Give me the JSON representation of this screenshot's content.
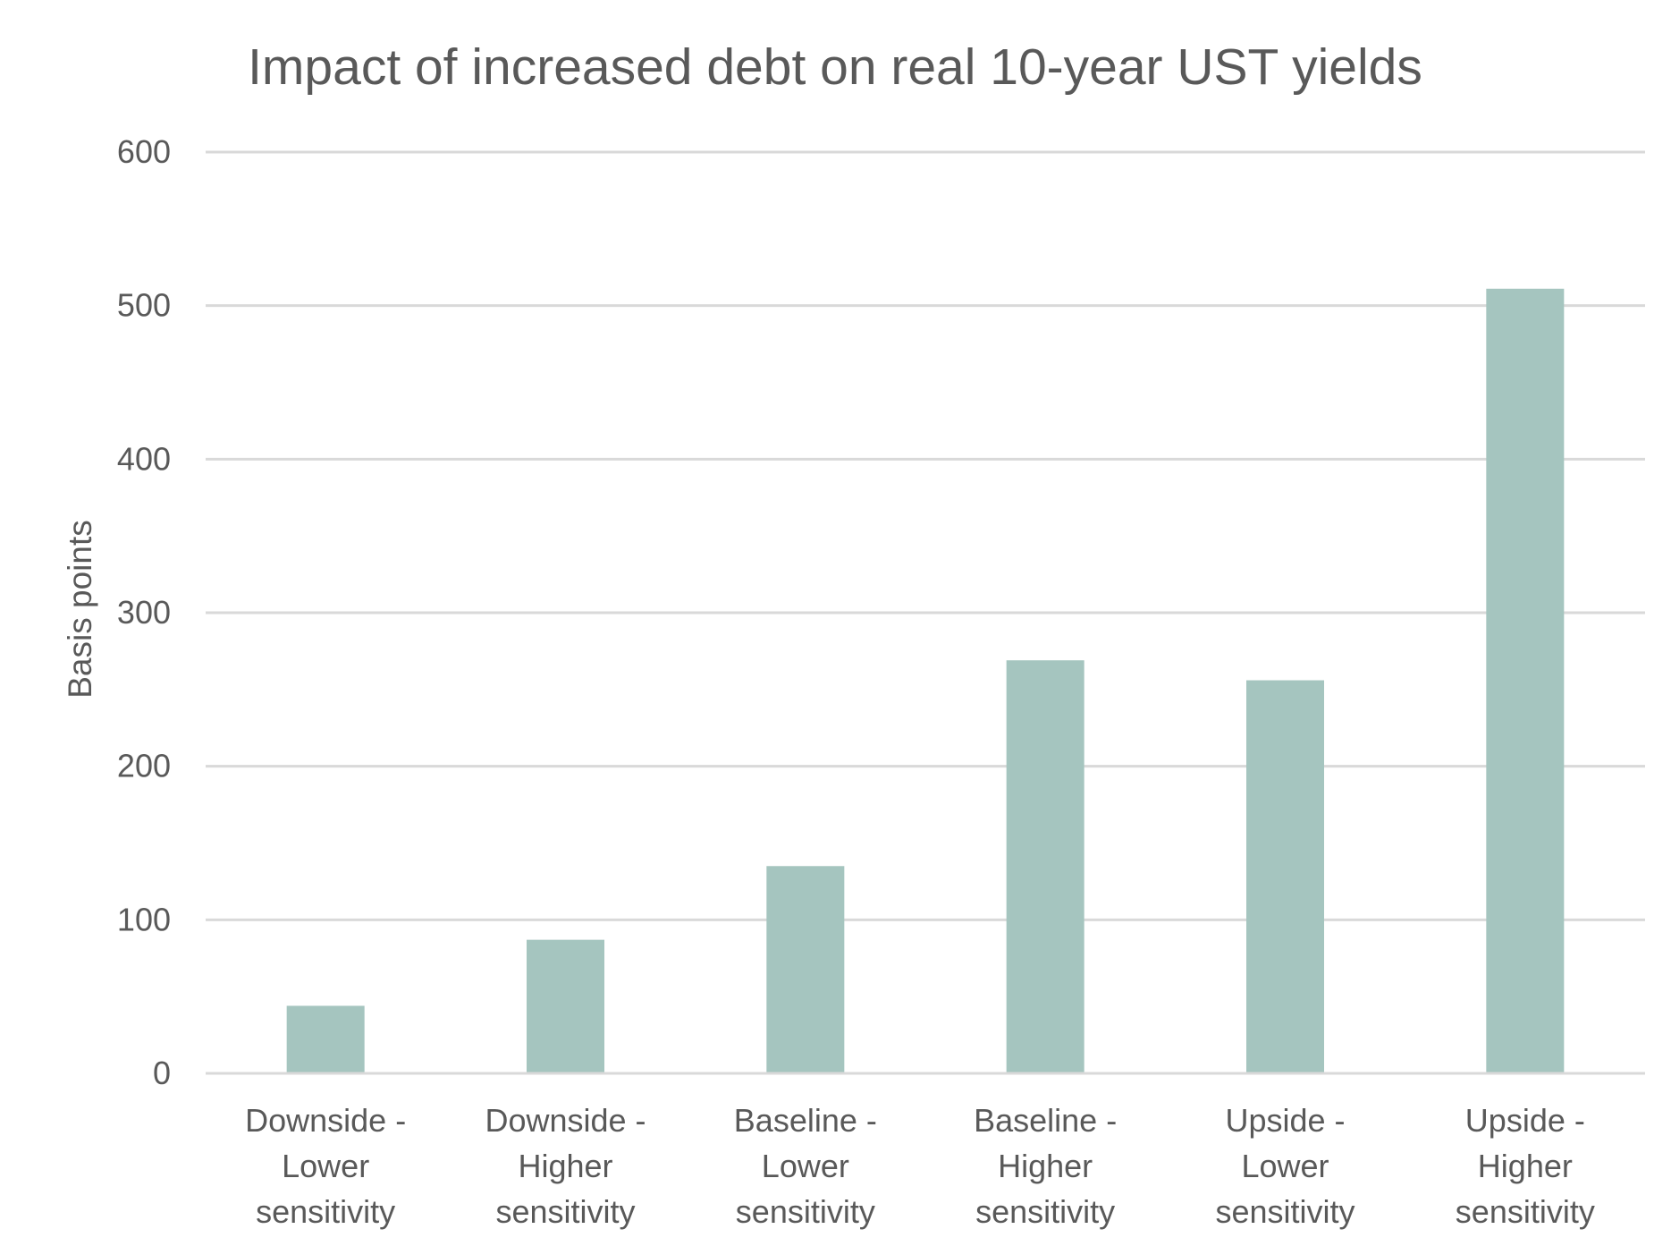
{
  "chart_data": {
    "type": "bar",
    "title": "Impact of increased debt on real 10-year UST yields",
    "xlabel": "",
    "ylabel": "Basis points",
    "ylim": [
      0,
      600
    ],
    "yticks": [
      "0",
      "100",
      "200",
      "300",
      "400",
      "500",
      "600"
    ],
    "grid": true,
    "legend": "none",
    "bar_color": "#a5c5bf",
    "categories": [
      [
        "Downside -",
        "Lower",
        "sensitivity"
      ],
      [
        "Downside -",
        "Higher",
        "sensitivity"
      ],
      [
        "Baseline -",
        "Lower",
        "sensitivity"
      ],
      [
        "Baseline -",
        "Higher",
        "sensitivity"
      ],
      [
        "Upside -",
        "Lower",
        "sensitivity"
      ],
      [
        "Upside -",
        "Higher",
        "sensitivity"
      ]
    ],
    "values": [
      44,
      87,
      135,
      269,
      256,
      511
    ]
  }
}
